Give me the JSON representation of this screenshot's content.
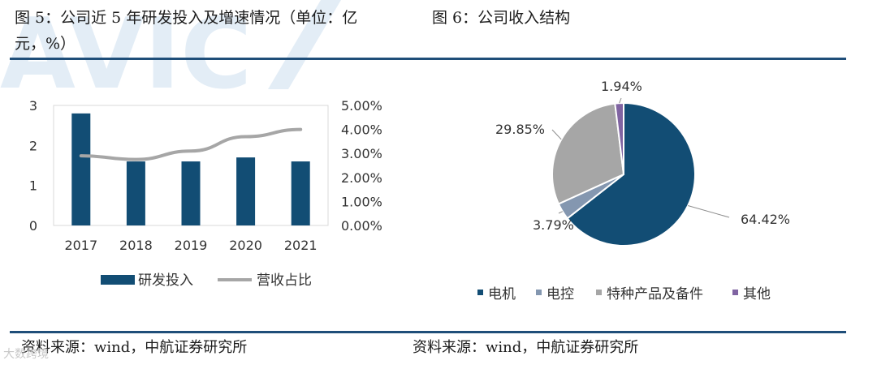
{
  "figures": {
    "left_title": "图 5：公司近 5 年研发投入及增速情况（单位：亿元，%）",
    "right_title": "图 6：公司收入结构"
  },
  "sources": {
    "left": "资料来源：wind，中航证券研究所",
    "right": "资料来源：wind，中航证券研究所"
  },
  "watermark": {
    "logo_text": "AVIC",
    "corner_text": "大数跨境"
  },
  "colors": {
    "bar": "#124d74",
    "line": "#a6a6a6",
    "rule": "#1f4e79",
    "pie": [
      "#124d74",
      "#8497b0",
      "#a6a6a6",
      "#8064a2"
    ]
  },
  "chart_data": [
    {
      "type": "bar",
      "categories": [
        "2017",
        "2018",
        "2019",
        "2020",
        "2021"
      ],
      "series": [
        {
          "name": "研发投入",
          "type": "bar",
          "axis": "left",
          "values": [
            2.8,
            1.6,
            1.6,
            1.7,
            1.6
          ]
        },
        {
          "name": "营收占比",
          "type": "line",
          "axis": "right",
          "values": [
            0.029,
            0.0275,
            0.031,
            0.037,
            0.04
          ]
        }
      ],
      "y_left": {
        "range": [
          0,
          3
        ],
        "ticks": [
          "0",
          "1",
          "2",
          "3"
        ]
      },
      "y_right": {
        "range": [
          0,
          0.05
        ],
        "ticks": [
          "0.00%",
          "1.00%",
          "2.00%",
          "3.00%",
          "4.00%",
          "5.00%"
        ]
      },
      "grid": false,
      "legend": "bottom"
    },
    {
      "type": "pie",
      "slices": [
        {
          "name": "电机",
          "value": 64.42,
          "label": "64.42%"
        },
        {
          "name": "电控",
          "value": 3.79,
          "label": "3.79%"
        },
        {
          "name": "特种产品及备件",
          "value": 29.85,
          "label": "29.85%"
        },
        {
          "name": "其他",
          "value": 1.94,
          "label": "1.94%"
        }
      ],
      "legend": "bottom"
    }
  ]
}
